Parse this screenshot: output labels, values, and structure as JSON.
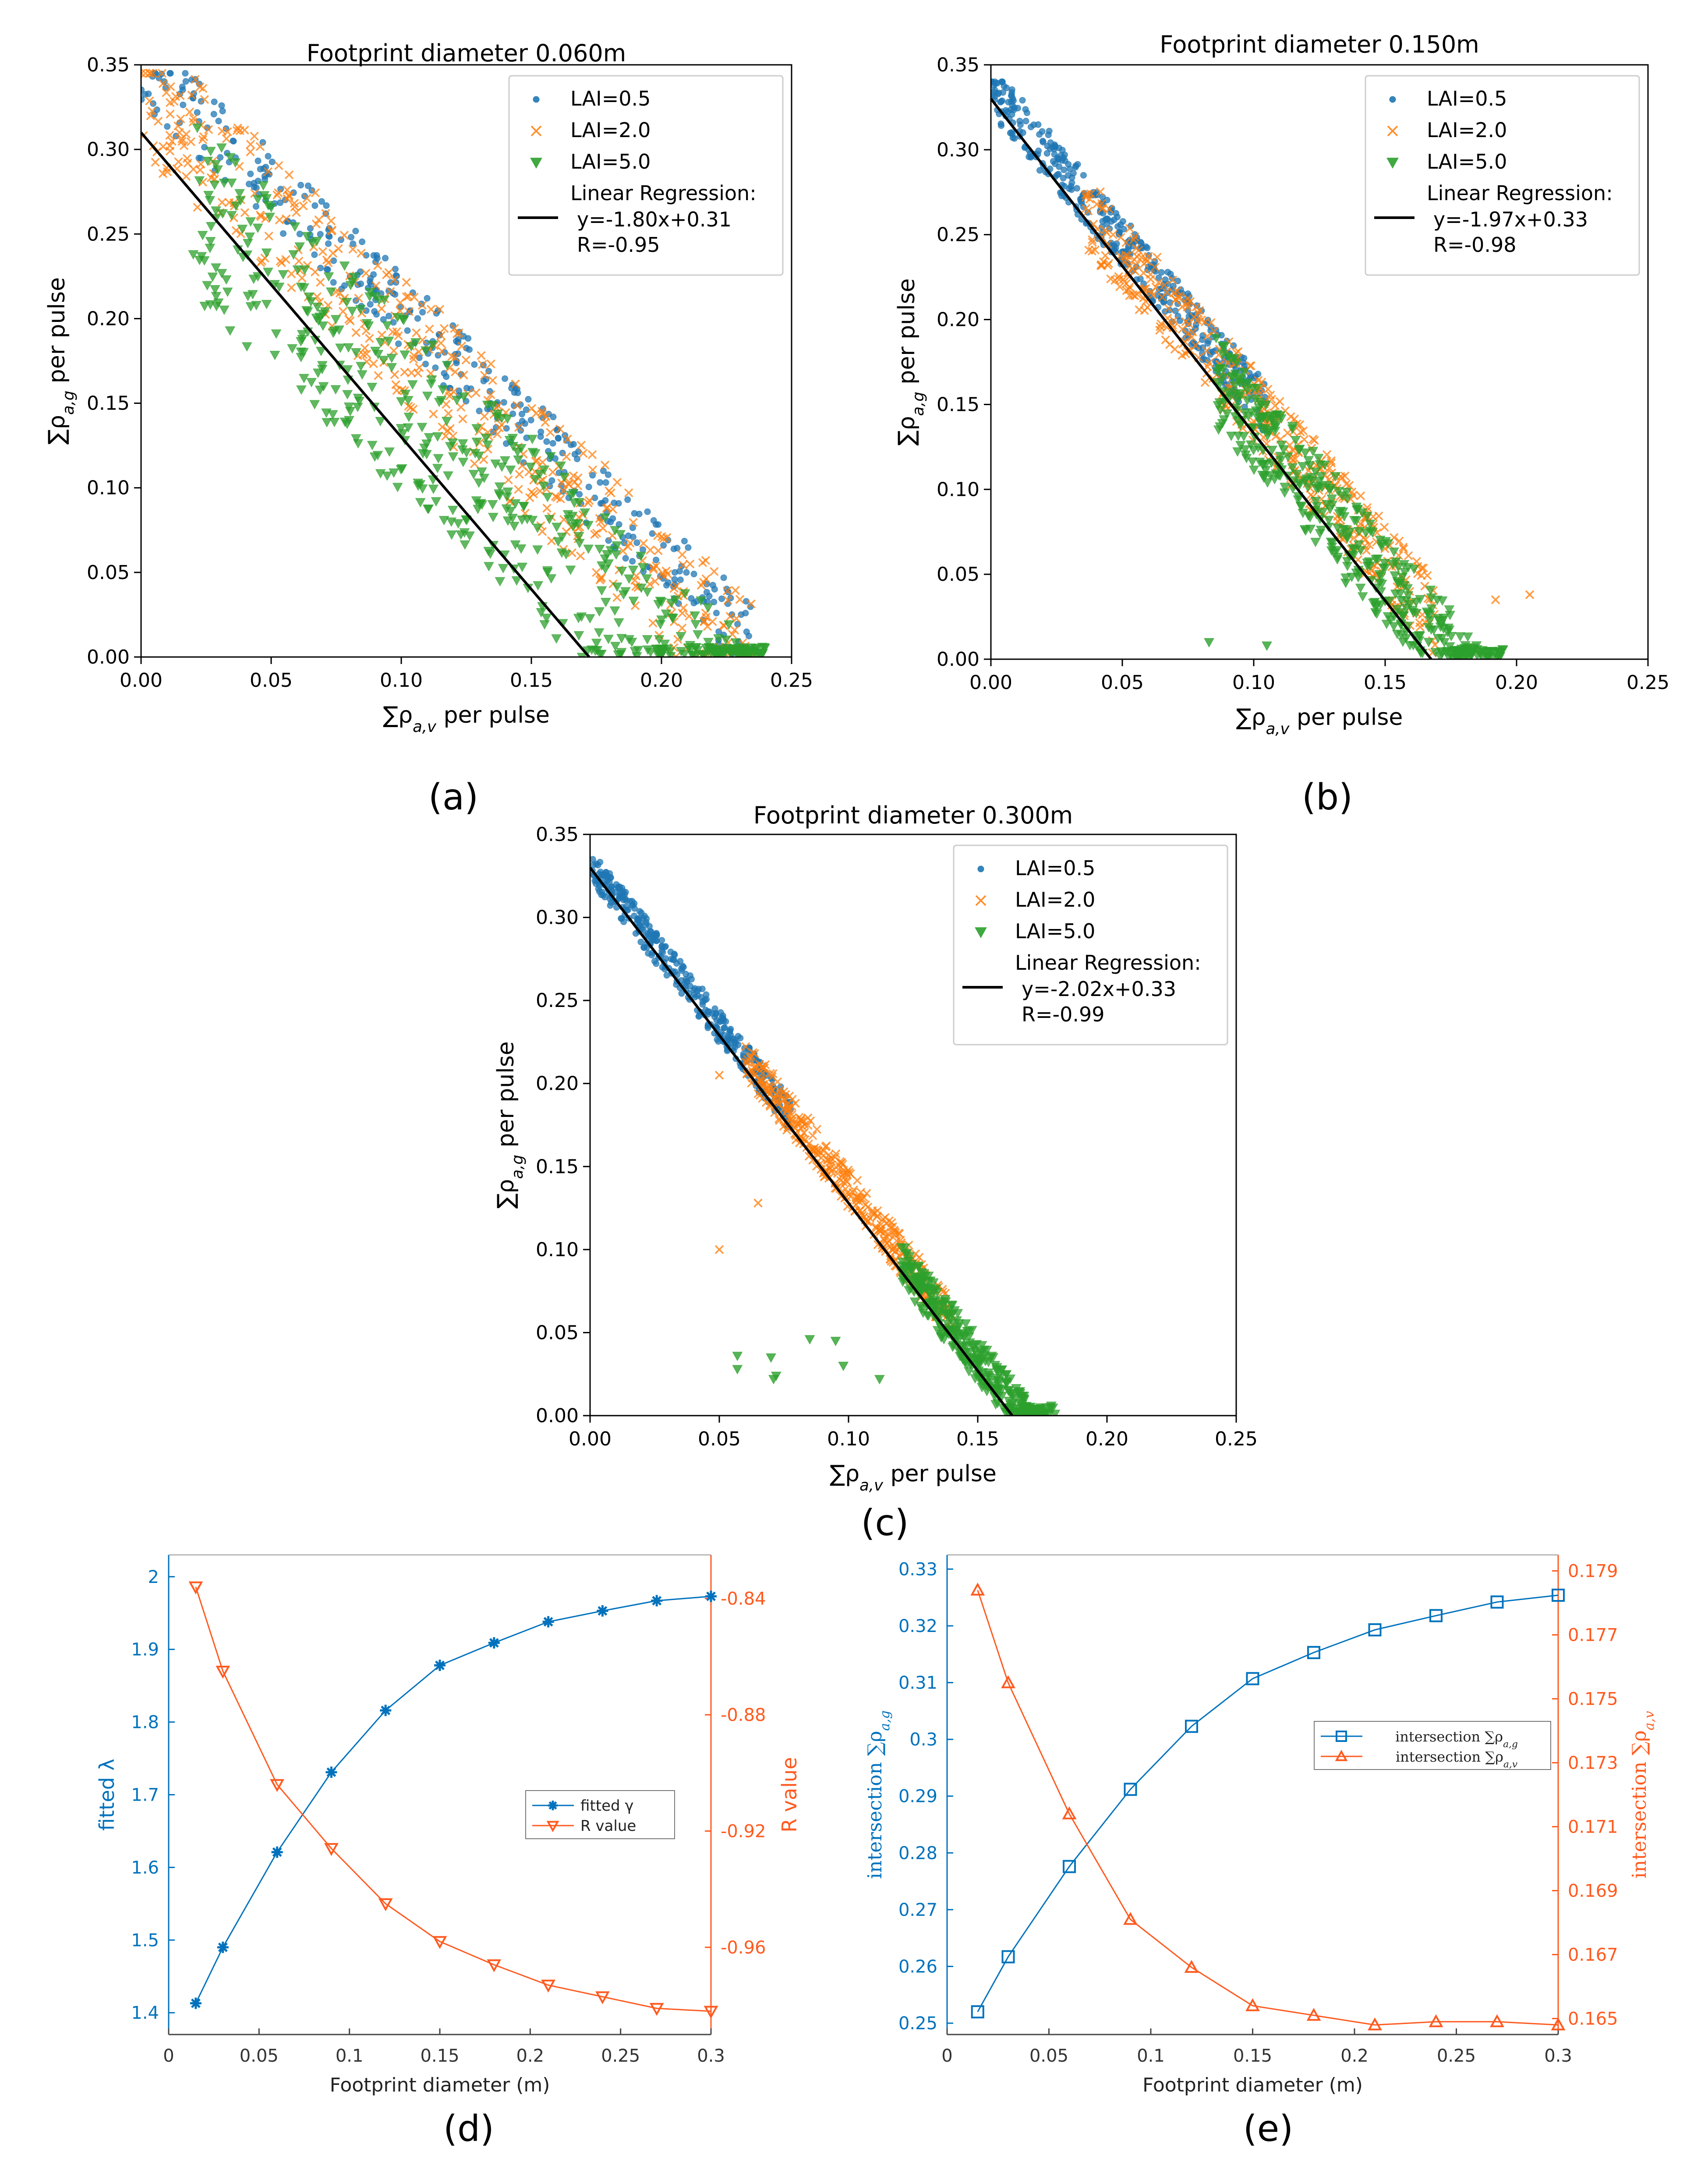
{
  "colors": {
    "lai05": "#1f77b4",
    "lai20": "#ff7f0e",
    "lai50": "#2ca02c",
    "reg": "#000000",
    "matlab_blue": "#0072bd",
    "matlab_orange": "#ff5a1f",
    "axis": "#000000"
  },
  "panel_labels": {
    "a": "(a)",
    "b": "(b)",
    "c": "(c)",
    "d": "(d)",
    "e": "(e)"
  },
  "chart_data": [
    {
      "id": "a",
      "type": "scatter",
      "title": "Footprint diameter 0.060m",
      "xlabel": "∑ρa,v per pulse",
      "ylabel": "∑ρa,g per pulse",
      "xlim": [
        0,
        0.25
      ],
      "ylim": [
        0,
        0.35
      ],
      "xticks": [
        "0.00",
        "0.05",
        "0.10",
        "0.15",
        "0.20",
        "0.25"
      ],
      "yticks": [
        "0.00",
        "0.05",
        "0.10",
        "0.15",
        "0.20",
        "0.25",
        "0.30",
        "0.35"
      ],
      "legend": {
        "position": "top-right",
        "entries": [
          "LAI=0.5",
          "LAI=2.0",
          "LAI=5.0"
        ],
        "reg_lines": [
          "Linear Regression:",
          "y=-1.80x+0.31",
          "R=-0.95"
        ]
      },
      "regression": {
        "slope": -1.8,
        "intercept": 0.31,
        "R": -0.95
      },
      "clouds": [
        {
          "name": "LAI=0.5",
          "x_range": [
            0.0,
            0.235
          ],
          "band": [
            -0.015,
            0.03
          ],
          "cap": 0.345,
          "ab": [
            0.342,
            1.45
          ],
          "count": 380
        },
        {
          "name": "LAI=2.0",
          "x_range": [
            0.0,
            0.235
          ],
          "band": [
            -0.045,
            0.03
          ],
          "cap": 0.345,
          "ab": [
            0.342,
            1.45
          ],
          "count": 460
        },
        {
          "name": "LAI=5.0",
          "x_range": [
            0.02,
            0.24
          ],
          "band": [
            -0.1,
            0.005
          ],
          "cap": 0.33,
          "ab": [
            0.342,
            1.45
          ],
          "count": 520
        }
      ]
    },
    {
      "id": "b",
      "type": "scatter",
      "title": "Footprint diameter 0.150m",
      "xlabel": "∑ρa,v per pulse",
      "ylabel": "∑ρa,g per pulse",
      "xlim": [
        0,
        0.25
      ],
      "ylim": [
        0,
        0.35
      ],
      "xticks": [
        "0.00",
        "0.05",
        "0.10",
        "0.15",
        "0.20",
        "0.25"
      ],
      "yticks": [
        "0.00",
        "0.05",
        "0.10",
        "0.15",
        "0.20",
        "0.25",
        "0.30",
        "0.35"
      ],
      "legend": {
        "position": "top-right",
        "entries": [
          "LAI=0.5",
          "LAI=2.0",
          "LAI=5.0"
        ],
        "reg_lines": [
          "Linear Regression:",
          "y=-1.97x+0.33",
          "R=-0.98"
        ]
      },
      "regression": {
        "slope": -1.97,
        "intercept": 0.33,
        "R": -0.98
      },
      "clouds": [
        {
          "name": "LAI=0.5",
          "x_range": [
            0.0,
            0.105
          ],
          "band": [
            -0.015,
            0.015
          ],
          "cap": 0.34,
          "ab": [
            0.336,
            1.8
          ],
          "count": 420
        },
        {
          "name": "LAI=2.0",
          "x_range": [
            0.035,
            0.17
          ],
          "band": [
            -0.03,
            0.015
          ],
          "cap": 0.34,
          "ab": [
            0.336,
            1.8
          ],
          "count": 420
        },
        {
          "name": "LAI=5.0",
          "x_range": [
            0.085,
            0.195
          ],
          "band": [
            -0.045,
            0.008
          ],
          "cap": 0.34,
          "ab": [
            0.336,
            1.8
          ],
          "count": 420
        }
      ],
      "outliers": [
        {
          "name": "LAI=2.0",
          "points": [
            [
              0.205,
              0.038
            ],
            [
              0.192,
              0.035
            ]
          ]
        },
        {
          "name": "LAI=5.0",
          "points": [
            [
              0.083,
              0.01
            ],
            [
              0.105,
              0.008
            ],
            [
              0.135,
              0.045
            ]
          ]
        }
      ]
    },
    {
      "id": "c",
      "type": "scatter",
      "title": "Footprint diameter 0.300m",
      "xlabel": "∑ρa,v per pulse",
      "ylabel": "∑ρa,g per pulse",
      "xlim": [
        0,
        0.25
      ],
      "ylim": [
        0,
        0.35
      ],
      "xticks": [
        "0.00",
        "0.05",
        "0.10",
        "0.15",
        "0.20",
        "0.25"
      ],
      "yticks": [
        "0.00",
        "0.05",
        "0.10",
        "0.15",
        "0.20",
        "0.25",
        "0.30",
        "0.35"
      ],
      "legend": {
        "position": "top-right",
        "entries": [
          "LAI=0.5",
          "LAI=2.0",
          "LAI=5.0"
        ],
        "reg_lines": [
          "Linear Regression:",
          "y=-2.02x+0.33",
          "R=-0.99"
        ]
      },
      "regression": {
        "slope": -2.02,
        "intercept": 0.33,
        "R": -0.99
      },
      "clouds": [
        {
          "name": "LAI=0.5",
          "x_range": [
            0.0,
            0.078
          ],
          "band": [
            -0.01,
            0.01
          ],
          "cap": 0.335,
          "ab": [
            0.332,
            1.95
          ],
          "count": 360
        },
        {
          "name": "LAI=2.0",
          "x_range": [
            0.06,
            0.14
          ],
          "band": [
            -0.012,
            0.012
          ],
          "cap": 0.335,
          "ab": [
            0.332,
            1.95
          ],
          "count": 360
        },
        {
          "name": "LAI=5.0",
          "x_range": [
            0.12,
            0.18
          ],
          "band": [
            -0.02,
            0.008
          ],
          "cap": 0.335,
          "ab": [
            0.332,
            1.95
          ],
          "count": 340
        }
      ],
      "outliers": [
        {
          "name": "LAI=2.0",
          "points": [
            [
              0.05,
              0.1
            ],
            [
              0.065,
              0.128
            ],
            [
              0.05,
              0.205
            ]
          ]
        },
        {
          "name": "LAI=5.0",
          "points": [
            [
              0.057,
              0.036
            ],
            [
              0.07,
              0.035
            ],
            [
              0.072,
              0.024
            ],
            [
              0.085,
              0.046
            ],
            [
              0.095,
              0.045
            ],
            [
              0.098,
              0.03
            ],
            [
              0.112,
              0.022
            ],
            [
              0.057,
              0.028
            ],
            [
              0.071,
              0.022
            ]
          ]
        }
      ]
    },
    {
      "id": "d",
      "type": "line",
      "xlabel": "Footprint diameter (m)",
      "ylabel_left": "fitted λ",
      "ylabel_right": "R value",
      "xlim": [
        0,
        0.3
      ],
      "ylim_left": [
        1.37,
        2.03
      ],
      "ylim_right": [
        -0.99,
        -0.825
      ],
      "xticks": [
        "0",
        "0.05",
        "0.1",
        "0.15",
        "0.2",
        "0.25",
        "0.3"
      ],
      "yticks_left": [
        "1.4",
        "1.5",
        "1.6",
        "1.7",
        "1.8",
        "1.9",
        "2"
      ],
      "yticks_right": [
        "-0.84",
        "-0.88",
        "-0.92",
        "-0.96"
      ],
      "legend": {
        "position": "center-right",
        "entries": [
          "fitted γ",
          "R value"
        ]
      },
      "x": [
        0.015,
        0.03,
        0.06,
        0.09,
        0.12,
        0.15,
        0.18,
        0.21,
        0.24,
        0.27,
        0.3
      ],
      "series": [
        {
          "name": "fitted γ",
          "axis": "left",
          "marker": "star",
          "values": [
            1.413,
            1.49,
            1.621,
            1.731,
            1.816,
            1.878,
            1.909,
            1.938,
            1.953,
            1.967,
            1.973
          ]
        },
        {
          "name": "R value",
          "axis": "right",
          "marker": "triangle-down",
          "values": [
            -0.836,
            -0.865,
            -0.904,
            -0.926,
            -0.945,
            -0.958,
            -0.966,
            -0.973,
            -0.977,
            -0.981,
            -0.982
          ]
        }
      ]
    },
    {
      "id": "e",
      "type": "line",
      "xlabel": "Footprint diameter (m)",
      "ylabel_left": "intersection ∑ρa,g",
      "ylabel_right": "intersection ∑ρa,v",
      "xlim": [
        0,
        0.3
      ],
      "ylim_left": [
        0.248,
        0.3325
      ],
      "ylim_right": [
        0.1645,
        0.1795
      ],
      "xticks": [
        "0",
        "0.05",
        "0.1",
        "0.15",
        "0.2",
        "0.25",
        "0.3"
      ],
      "yticks_left": [
        "0.25",
        "0.26",
        "0.27",
        "0.28",
        "0.29",
        "0.3",
        "0.31",
        "0.32",
        "0.33"
      ],
      "yticks_right": [
        "0.165",
        "0.167",
        "0.169",
        "0.171",
        "0.173",
        "0.175",
        "0.177",
        "0.179"
      ],
      "legend": {
        "position": "center-right",
        "entries": [
          "intersection ∑ρa,g",
          "intersection ∑ρa,v"
        ]
      },
      "x": [
        0.015,
        0.03,
        0.06,
        0.09,
        0.12,
        0.15,
        0.18,
        0.21,
        0.24,
        0.27,
        0.3
      ],
      "series": [
        {
          "name": "intersection ∑ρa,g",
          "axis": "left",
          "marker": "square",
          "values": [
            0.252,
            0.2617,
            0.2776,
            0.2912,
            0.3023,
            0.3107,
            0.3153,
            0.3193,
            0.3218,
            0.3242,
            0.3254
          ]
        },
        {
          "name": "intersection ∑ρa,v",
          "axis": "right",
          "marker": "triangle-up",
          "values": [
            0.1784,
            0.1755,
            0.1714,
            0.1681,
            0.1666,
            0.1654,
            0.1651,
            0.1648,
            0.1649,
            0.1649,
            0.1648
          ]
        }
      ]
    }
  ]
}
